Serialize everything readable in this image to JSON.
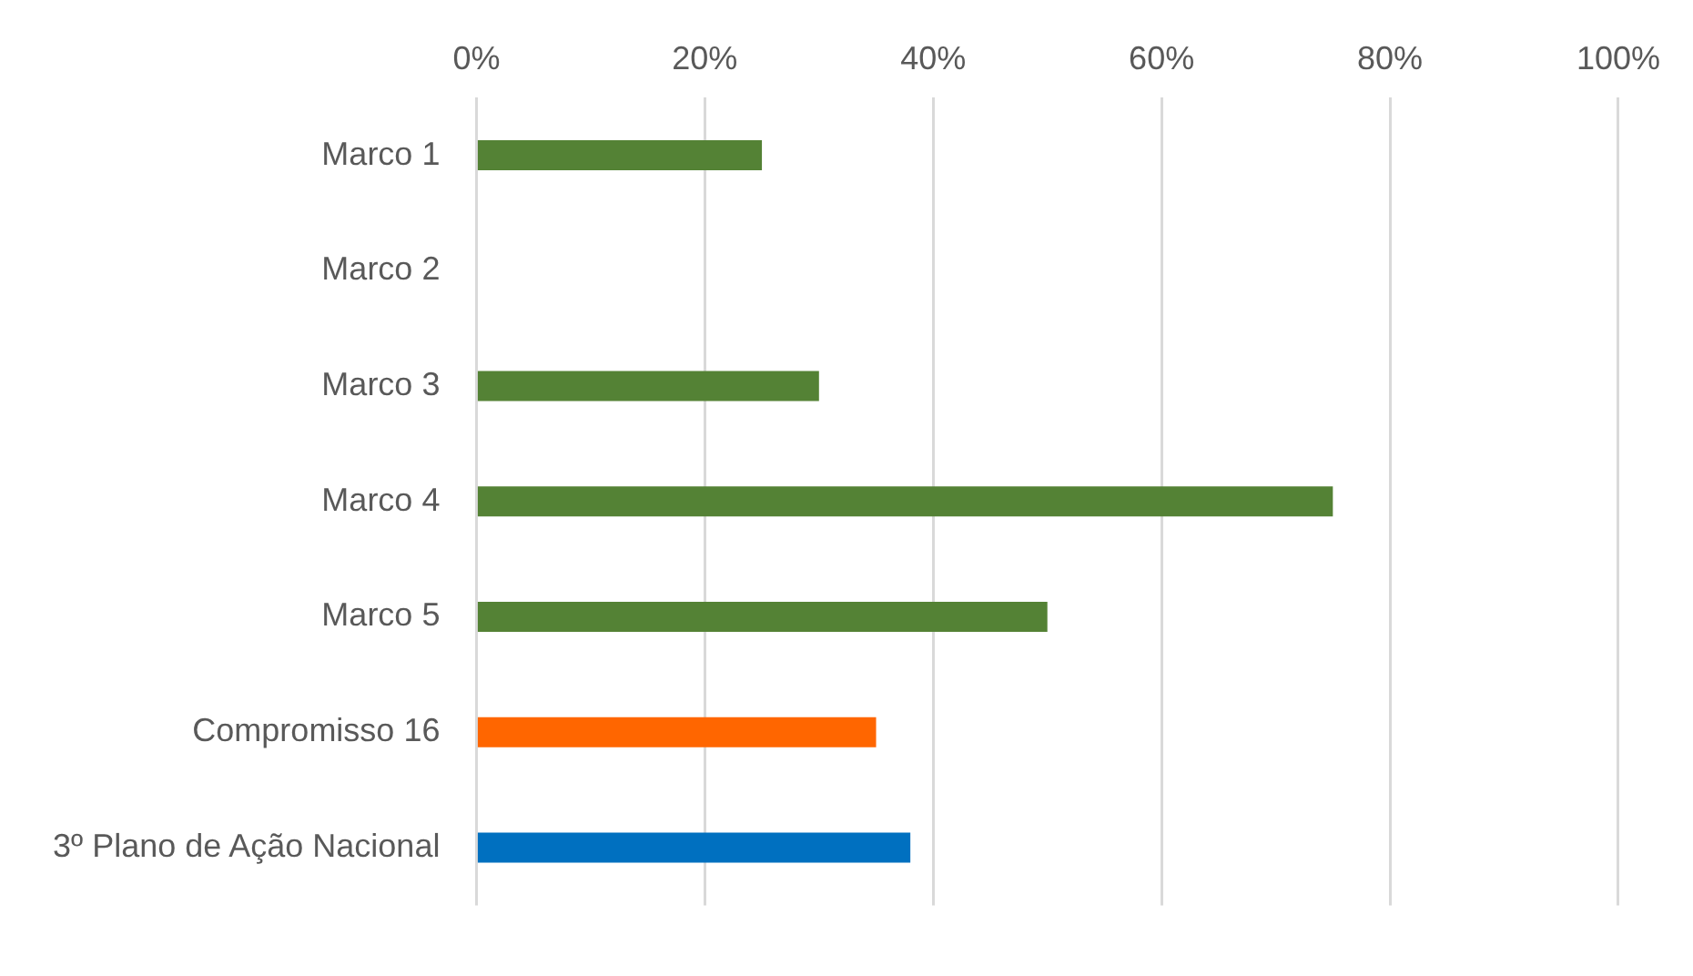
{
  "chart_data": {
    "type": "bar",
    "orientation": "horizontal",
    "categories": [
      "Marco 1",
      "Marco 2",
      "Marco 3",
      "Marco 4",
      "Marco 5",
      "Compromisso 16",
      "3º Plano de Ação Nacional"
    ],
    "values": [
      25,
      0,
      30,
      75,
      50,
      35,
      38
    ],
    "colors": [
      "#548235",
      "#548235",
      "#548235",
      "#548235",
      "#548235",
      "#ff6600",
      "#0070c0"
    ],
    "xlim": [
      0,
      100
    ],
    "xticks": [
      {
        "value": 0,
        "label": "0%"
      },
      {
        "value": 20,
        "label": "20%"
      },
      {
        "value": 40,
        "label": "40%"
      },
      {
        "value": 60,
        "label": "60%"
      },
      {
        "value": 80,
        "label": "80%"
      },
      {
        "value": 100,
        "label": "100%"
      }
    ],
    "grid": "x",
    "legend": false
  }
}
